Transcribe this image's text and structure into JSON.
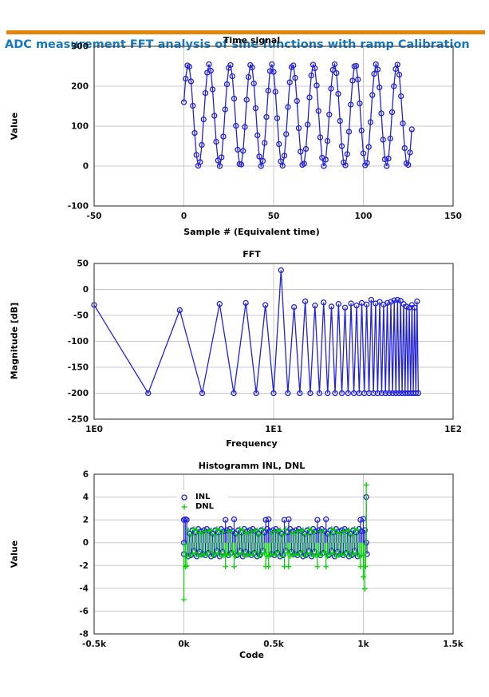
{
  "header": {
    "title": "ADC measurement FFT analysis of sine functions with ramp Calibration"
  },
  "colors": {
    "accent_orange": "#E8830A",
    "title_blue": "#1578BE",
    "series_blue": "#2222DD",
    "series_green": "#00CE00",
    "grid": "#C8C8C8",
    "border": "#474747",
    "tick_text": "#111111"
  },
  "chart_data": [
    {
      "id": "time_signal",
      "type": "line",
      "title": "Time signal",
      "xlabel": "Sample # (Equivalent time)",
      "ylabel": "Value",
      "xscale": "linear",
      "xlim": [
        -50,
        150
      ],
      "ylim": [
        -100,
        300
      ],
      "xticks": [
        -50,
        0,
        50,
        100,
        150
      ],
      "yticks": [
        -100,
        0,
        100,
        200,
        300
      ],
      "marker": "circle",
      "x_start": 0,
      "x_step": 1,
      "values": [
        160,
        219,
        252,
        249,
        212,
        151,
        83,
        28,
        1,
        10,
        53,
        117,
        183,
        234,
        255,
        239,
        192,
        126,
        61,
        14,
        0,
        22,
        74,
        142,
        205,
        246,
        253,
        225,
        169,
        101,
        41,
        5,
        4,
        38,
        98,
        166,
        223,
        253,
        247,
        207,
        145,
        77,
        24,
        0,
        13,
        58,
        123,
        189,
        238,
        255,
        236,
        186,
        120,
        55,
        12,
        1,
        26,
        80,
        148,
        210,
        248,
        252,
        221,
        163,
        95,
        36,
        3,
        6,
        43,
        104,
        172,
        227,
        254,
        245,
        202,
        138,
        72,
        21,
        0,
        16,
        63,
        129,
        194,
        241,
        255,
        233,
        181,
        113,
        50,
        9,
        2,
        30,
        86,
        154,
        214,
        250,
        251,
        217,
        157,
        89,
        32,
        2,
        8,
        48,
        110,
        178,
        231,
        255,
        242,
        197,
        132,
        66,
        17,
        0,
        19,
        69,
        135,
        200,
        243,
        254,
        229,
        175,
        107,
        45,
        7,
        3,
        34,
        92
      ]
    },
    {
      "id": "fft",
      "type": "line",
      "title": "FFT",
      "xlabel": "Frequency",
      "ylabel": "Magnitude [dB]",
      "xscale": "log",
      "xlim": [
        1,
        100
      ],
      "ylim": [
        -250,
        50
      ],
      "xticks": [
        1,
        10,
        100
      ],
      "xtick_labels": [
        "1E0",
        "1E1",
        "1E2"
      ],
      "yticks": [
        -250,
        -200,
        -150,
        -100,
        -50,
        0,
        50
      ],
      "marker": "circle",
      "x_start": 1,
      "x_step": 1,
      "values": [
        -30,
        -200,
        -40,
        -200,
        -28,
        -200,
        -26,
        -200,
        -30,
        -200,
        37,
        -200,
        -34,
        -200,
        -23,
        -200,
        -31,
        -200,
        -25,
        -200,
        -33,
        -200,
        -28,
        -200,
        -35,
        -200,
        -27,
        -200,
        -31,
        -200,
        -26,
        -200,
        -29,
        -200,
        -20,
        -200,
        -27,
        -200,
        -24,
        -200,
        -29,
        -200,
        -26,
        -200,
        -24,
        -200,
        -21,
        -200,
        -20,
        -200,
        -22,
        -200,
        -28,
        -200,
        -33,
        -200,
        -35,
        -200,
        -30,
        -200,
        -35,
        -200,
        -23,
        -200
      ]
    },
    {
      "id": "histogram_inl_dnl",
      "type": "stem",
      "title": "Histogramm INL, DNL",
      "xlabel": "Code",
      "ylabel": "Value",
      "xscale": "linear",
      "xlim": [
        -500,
        1500
      ],
      "ylim": [
        -8,
        6
      ],
      "xticks": [
        -500,
        0,
        500,
        1000,
        1500
      ],
      "xtick_labels": [
        "-0.5k",
        "0k",
        "0.5k",
        "1k",
        "1.5k"
      ],
      "yticks": [
        -8,
        -6,
        -4,
        -2,
        0,
        2,
        4,
        6
      ],
      "legend": [
        {
          "label": "INL",
          "marker": "circle",
          "color": "series_blue"
        },
        {
          "label": "DNL",
          "marker": "plus",
          "color": "series_green"
        }
      ],
      "series": [
        {
          "name": "INL",
          "marker": "circle",
          "color": "series_blue",
          "x_start": 0,
          "x_step": 8,
          "values": [
            2,
            2.05,
            2,
            -1.2,
            0.8,
            -1.1,
            1.1,
            -0.7,
            0.9,
            -1.2,
            1.2,
            -0.8,
            1,
            -1,
            1.1,
            -1.1,
            1.2,
            -0.9,
            1,
            -1.2,
            0.8,
            -1.1,
            1.1,
            -0.7,
            0.9,
            -1.2,
            1.2,
            -0.8,
            1,
            2,
            1.1,
            -1.1,
            1.2,
            -0.9,
            1,
            2.05,
            0.8,
            -1.1,
            1.1,
            -0.7,
            0.9,
            -1.2,
            1.2,
            -0.8,
            1,
            -1,
            1.1,
            -1.1,
            1.2,
            -0.9,
            1,
            -1.2,
            0.8,
            -1.1,
            1.1,
            -0.7,
            0.9,
            2,
            1.2,
            2.05,
            1,
            -1,
            1.1,
            -1.1,
            1.2,
            -0.9,
            1,
            -1.2,
            0.8,
            -1.1,
            2,
            -0.7,
            0.9,
            2.05,
            1.2,
            -0.8,
            1,
            -1,
            1.1,
            -1.1,
            1.2,
            -0.9,
            1,
            -1.2,
            0.8,
            -1.1,
            1.1,
            -0.7,
            0.9,
            -1.2,
            1.2,
            -0.8,
            1,
            2,
            1.1,
            -1.1,
            1.2,
            -0.9,
            1,
            2.05,
            0.8,
            -1.1,
            1.1,
            -0.7,
            0.9,
            -1.2,
            1.2,
            -0.8,
            1,
            -1,
            1.1,
            -1.1,
            1.2,
            -0.9,
            1,
            -1.2,
            0.8,
            -1.1,
            1.1,
            -0.7,
            0.9,
            -1.2,
            1.2,
            2,
            1,
            2.1,
            1.1,
            4
          ],
          "extra": [
            {
              "x": 0,
              "y": 0
            },
            {
              "x": 0,
              "y": -1
            },
            {
              "x": 1016,
              "y": 0
            },
            {
              "x": 1020,
              "y": -1
            }
          ]
        },
        {
          "name": "DNL",
          "marker": "plus",
          "color": "series_green",
          "x_start": 0,
          "x_step": 8,
          "values": [
            -5,
            -2.1,
            -2.05,
            1.1,
            -1.2,
            0.7,
            -1,
            1.2,
            -0.9,
            1.1,
            -1.2,
            0.9,
            -1.1,
            0.8,
            -1,
            1,
            -1.1,
            1,
            -0.8,
            1.1,
            -1.2,
            0.7,
            -1,
            1.2,
            -0.9,
            1.1,
            -1.2,
            0.9,
            -1.1,
            -2.1,
            -1,
            1,
            -1.1,
            1,
            -0.8,
            -2.1,
            -1.2,
            0.7,
            -1,
            1.2,
            -0.9,
            1.1,
            -1.2,
            0.9,
            -1.1,
            0.8,
            -1,
            1,
            -1.1,
            1,
            -0.8,
            1.1,
            -1.2,
            0.7,
            -1,
            1.2,
            -0.9,
            -2.1,
            -1.2,
            -2.1,
            -1.1,
            0.8,
            -1,
            1,
            -1.1,
            1,
            -0.8,
            1.1,
            -1.2,
            0.7,
            -2.1,
            1.2,
            -0.9,
            -2.1,
            -1.2,
            0.9,
            -1.1,
            0.8,
            -1,
            1,
            -1.1,
            1,
            -0.8,
            1.1,
            -1.2,
            0.7,
            -1,
            1.2,
            -0.9,
            1.1,
            -1.2,
            0.9,
            -1.1,
            -2.1,
            -1,
            1,
            -1.1,
            1,
            -0.8,
            -2.1,
            -1.2,
            0.7,
            -1,
            1.2,
            -0.9,
            1.1,
            -1.2,
            0.9,
            -1.1,
            0.8,
            -1,
            1,
            -1.1,
            1,
            -0.8,
            1.1,
            -1.2,
            0.7,
            -1,
            1.2,
            -0.9,
            1.1,
            -1.2,
            -2.1,
            -1.1,
            -3,
            -4.05,
            5.05
          ],
          "extra": [
            {
              "x": 1012,
              "y": -2.1
            }
          ]
        }
      ]
    }
  ]
}
